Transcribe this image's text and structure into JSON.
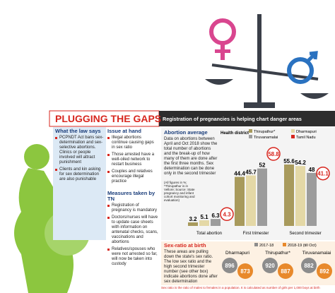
{
  "header": {
    "title": "PLUGGING THE GAPS",
    "subtitle": "Registration of pregnancies is helping chart danger areas"
  },
  "law": {
    "title": "What the law says",
    "items": [
      "PCPNDT Act bans sex-determination and sex-selective abortions. Clinics or people involved will attract punishment",
      "Clients and kin asking for sex determination are also punishable"
    ]
  },
  "issue": {
    "title": "Issue at hand",
    "items": [
      "Illegal abortions continue causing gaps in sex ratio",
      "Those arrested have a well-oiled network to restart business",
      "Couples and relatives encourage illegal practice"
    ]
  },
  "measures": {
    "title": "Measures taken by TN",
    "items": [
      "Registration of pregnancy is mandatory",
      "Doctors/nurses will have to update case sheets with information on antenatal checks, scans, vaccinations and abortions",
      "Relatives/spouses who were not arrested so far, will now be taken into custody"
    ]
  },
  "chart_data": [
    {
      "type": "bar",
      "title": "Abortion average",
      "description": "Data on abortions between April and Oct 2018 show the total number of abortions and the break-up of how many of them are done after the first three months. Sex determination can be done only in the second trimester",
      "axis_label": "Health district",
      "note": "(All figures in %; *Thirupathur is in Vellore; Source: State pregnancy and infant cohort monitoring and evaluation)",
      "categories": [
        "Total abortion",
        "First trimester",
        "Second trimester"
      ],
      "series": [
        {
          "name": "Thirupathur*",
          "color": "#a89a5c",
          "values": [
            3.2,
            44.4,
            55.6
          ]
        },
        {
          "name": "Dharmapuri",
          "color": "#e4d8a6",
          "values": [
            5.1,
            45.7,
            54.2
          ]
        },
        {
          "name": "Tiruvanamalai",
          "color": "#9c9c9c",
          "values": [
            6.3,
            52,
            48
          ]
        },
        {
          "name": "Tamil Nadu",
          "color": "#d7261e",
          "marker": "circle",
          "values": [
            4.3,
            58.8,
            41.1
          ]
        }
      ]
    },
    {
      "type": "dot",
      "title": "Sex-ratio at birth",
      "description": "These areas are pulling down the state's sex ratio. The low sex ratio and the high second trimester number (see other box) indicate abortions done after sex determination",
      "categories": [
        "Dharmapuri",
        "Thirupathur*",
        "Tiruvanamalai"
      ],
      "series": [
        {
          "name": "2017-18",
          "color": "#8c8c8c",
          "values": [
            896,
            920,
            882
          ]
        },
        {
          "name": "2018-19 (till Oct)",
          "color": "#e8892b",
          "values": [
            873,
            887,
            892
          ]
        }
      ],
      "note": "Sex ratio is the ratio of males to females in a population. It is calculated as number of girls per 1,000 boys at birth"
    }
  ]
}
